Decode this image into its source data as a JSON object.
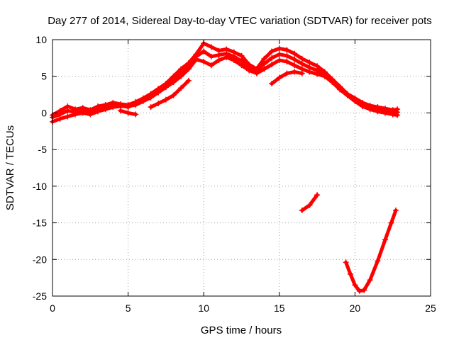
{
  "chart_data": {
    "type": "line",
    "title": "Day 277 of 2014, Sidereal Day-to-day VTEC variation (SDTVAR) for receiver pots",
    "xlabel": "GPS time / hours",
    "ylabel": "SDTVAR / TECUs",
    "xlim": [
      0,
      25
    ],
    "ylim": [
      -25,
      10
    ],
    "xticks": [
      "0",
      "5",
      "10",
      "15",
      "20",
      "25"
    ],
    "yticks": [
      "10",
      "5",
      "0",
      "-5",
      "-10",
      "-15",
      "-20",
      "-25"
    ],
    "grid": true,
    "series_color": "#ff0000",
    "series": [
      {
        "name": "trace-upper-a",
        "points": [
          [
            0.0,
            -0.3
          ],
          [
            0.5,
            0.3
          ],
          [
            1.0,
            0.9
          ],
          [
            1.5,
            0.5
          ],
          [
            2.0,
            0.7
          ],
          [
            2.5,
            0.4
          ],
          [
            3.0,
            0.9
          ],
          [
            3.5,
            1.1
          ],
          [
            4.0,
            1.4
          ],
          [
            4.5,
            1.2
          ],
          [
            5.0,
            1.1
          ],
          [
            5.5,
            1.5
          ],
          [
            6.0,
            2.0
          ],
          [
            6.5,
            2.6
          ],
          [
            7.0,
            3.3
          ],
          [
            7.5,
            4.0
          ],
          [
            8.0,
            5.0
          ],
          [
            8.5,
            6.0
          ],
          [
            9.0,
            6.8
          ],
          [
            9.5,
            8.0
          ],
          [
            10.0,
            9.5
          ],
          [
            10.5,
            9.0
          ],
          [
            11.0,
            8.5
          ],
          [
            11.5,
            8.7
          ],
          [
            12.0,
            8.3
          ],
          [
            12.5,
            7.8
          ],
          [
            13.0,
            6.6
          ],
          [
            13.5,
            6.0
          ],
          [
            14.0,
            7.4
          ],
          [
            14.5,
            8.4
          ],
          [
            15.0,
            8.8
          ],
          [
            15.5,
            8.6
          ],
          [
            16.0,
            8.1
          ],
          [
            16.5,
            7.4
          ],
          [
            17.0,
            6.9
          ],
          [
            17.5,
            6.4
          ],
          [
            18.0,
            5.6
          ],
          [
            18.5,
            4.6
          ],
          [
            19.0,
            3.6
          ],
          [
            19.5,
            2.6
          ],
          [
            20.0,
            2.0
          ],
          [
            20.5,
            1.4
          ],
          [
            21.0,
            1.0
          ],
          [
            21.5,
            0.8
          ],
          [
            22.0,
            0.6
          ],
          [
            22.5,
            0.4
          ],
          [
            22.8,
            0.5
          ]
        ]
      },
      {
        "name": "trace-upper-b",
        "points": [
          [
            0.0,
            -1.2
          ],
          [
            0.5,
            -0.8
          ],
          [
            1.0,
            -0.5
          ],
          [
            1.5,
            -0.2
          ],
          [
            2.0,
            0.0
          ],
          [
            2.5,
            -0.2
          ],
          [
            3.0,
            0.2
          ],
          [
            3.5,
            0.5
          ],
          [
            4.0,
            0.8
          ],
          [
            4.5,
            0.9
          ],
          [
            5.0,
            0.9
          ],
          [
            5.5,
            1.1
          ],
          [
            6.0,
            1.6
          ],
          [
            6.5,
            2.1
          ],
          [
            7.0,
            2.8
          ],
          [
            7.5,
            3.5
          ],
          [
            8.0,
            4.2
          ],
          [
            8.5,
            5.0
          ],
          [
            9.0,
            6.0
          ],
          [
            9.5,
            7.3
          ],
          [
            10.0,
            7.0
          ],
          [
            10.5,
            6.5
          ],
          [
            11.0,
            7.2
          ],
          [
            11.5,
            7.6
          ],
          [
            12.0,
            7.2
          ],
          [
            12.5,
            6.5
          ],
          [
            13.0,
            5.8
          ],
          [
            13.5,
            5.4
          ],
          [
            14.0,
            6.0
          ],
          [
            14.5,
            6.6
          ],
          [
            15.0,
            7.2
          ],
          [
            15.5,
            7.0
          ],
          [
            16.0,
            6.5
          ],
          [
            16.5,
            6.0
          ],
          [
            17.0,
            5.6
          ],
          [
            17.5,
            5.3
          ],
          [
            18.0,
            5.0
          ],
          [
            18.5,
            4.2
          ],
          [
            19.0,
            3.2
          ],
          [
            19.5,
            2.4
          ],
          [
            20.0,
            1.6
          ],
          [
            20.5,
            0.9
          ],
          [
            21.0,
            0.5
          ],
          [
            21.5,
            0.2
          ],
          [
            22.0,
            0.0
          ],
          [
            22.5,
            -0.2
          ],
          [
            22.8,
            -0.3
          ]
        ]
      },
      {
        "name": "trace-upper-c",
        "points": [
          [
            0.0,
            -0.6
          ],
          [
            0.5,
            -0.2
          ],
          [
            1.0,
            0.3
          ],
          [
            1.5,
            0.1
          ],
          [
            2.0,
            0.4
          ],
          [
            2.5,
            0.1
          ],
          [
            3.0,
            0.5
          ],
          [
            3.5,
            0.8
          ],
          [
            4.0,
            1.1
          ],
          [
            4.5,
            1.0
          ],
          [
            5.0,
            0.8
          ],
          [
            5.5,
            1.3
          ],
          [
            6.0,
            1.8
          ],
          [
            6.5,
            2.4
          ],
          [
            7.0,
            3.0
          ],
          [
            7.5,
            3.7
          ],
          [
            8.0,
            4.6
          ],
          [
            8.5,
            5.5
          ],
          [
            9.0,
            6.4
          ],
          [
            9.5,
            7.7
          ],
          [
            10.0,
            8.4
          ],
          [
            10.5,
            7.7
          ],
          [
            11.0,
            7.9
          ],
          [
            11.5,
            8.1
          ],
          [
            12.0,
            7.7
          ],
          [
            12.5,
            7.1
          ],
          [
            13.0,
            6.2
          ],
          [
            13.5,
            5.7
          ],
          [
            14.0,
            6.7
          ],
          [
            14.5,
            7.5
          ],
          [
            15.0,
            8.0
          ],
          [
            15.5,
            7.8
          ],
          [
            16.0,
            7.3
          ],
          [
            16.5,
            6.7
          ],
          [
            17.0,
            6.2
          ],
          [
            17.5,
            5.8
          ],
          [
            18.0,
            5.3
          ],
          [
            18.5,
            4.4
          ],
          [
            19.0,
            3.4
          ],
          [
            19.5,
            2.5
          ],
          [
            20.0,
            1.8
          ],
          [
            20.5,
            1.1
          ],
          [
            21.0,
            0.7
          ],
          [
            21.5,
            0.5
          ],
          [
            22.0,
            0.3
          ],
          [
            22.5,
            0.1
          ],
          [
            22.8,
            0.1
          ]
        ]
      },
      {
        "name": "trace-short-a",
        "points": [
          [
            4.5,
            0.3
          ],
          [
            5.0,
            0.0
          ],
          [
            5.5,
            -0.2
          ]
        ]
      },
      {
        "name": "trace-short-b",
        "points": [
          [
            6.5,
            0.8
          ],
          [
            7.0,
            1.3
          ],
          [
            7.5,
            1.8
          ],
          [
            8.0,
            2.4
          ],
          [
            8.5,
            3.4
          ],
          [
            9.0,
            4.4
          ]
        ]
      },
      {
        "name": "trace-short-c",
        "points": [
          [
            14.5,
            4.0
          ],
          [
            15.0,
            4.8
          ],
          [
            15.5,
            5.4
          ],
          [
            16.0,
            5.6
          ],
          [
            16.5,
            5.4
          ]
        ]
      },
      {
        "name": "trace-segment-mid",
        "points": [
          [
            16.5,
            -13.3
          ],
          [
            17.0,
            -12.6
          ],
          [
            17.5,
            -11.2
          ]
        ]
      },
      {
        "name": "trace-dip",
        "points": [
          [
            19.4,
            -20.4
          ],
          [
            19.7,
            -22.0
          ],
          [
            20.0,
            -23.5
          ],
          [
            20.3,
            -24.3
          ],
          [
            20.6,
            -24.2
          ],
          [
            21.0,
            -22.8
          ],
          [
            21.5,
            -20.2
          ],
          [
            22.0,
            -17.3
          ],
          [
            22.4,
            -15.0
          ],
          [
            22.7,
            -13.3
          ]
        ]
      }
    ]
  }
}
